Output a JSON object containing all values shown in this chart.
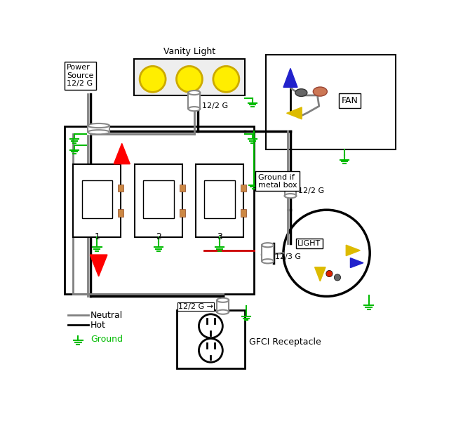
{
  "bg_color": "#ffffff",
  "line_colors": {
    "neutral": "#808080",
    "hot": "#000000",
    "ground": "#00bb00",
    "red": "#cc0000"
  },
  "labels": {
    "vanity": "Vanity Light",
    "power": "Power\nSource\n12/2 G",
    "fan": "FAN",
    "light": "LIGHT",
    "gfci": "GFCI Receptacle",
    "cable_vanity": "12/2 G",
    "cable_fan": "12/2 G",
    "cable_light": "12/3 G",
    "cable_gfci": "12/2 G",
    "ground_if": "Ground if\nmetal box",
    "neutral_leg": "Neutral",
    "hot_leg": "Hot",
    "ground_leg": "Ground"
  }
}
